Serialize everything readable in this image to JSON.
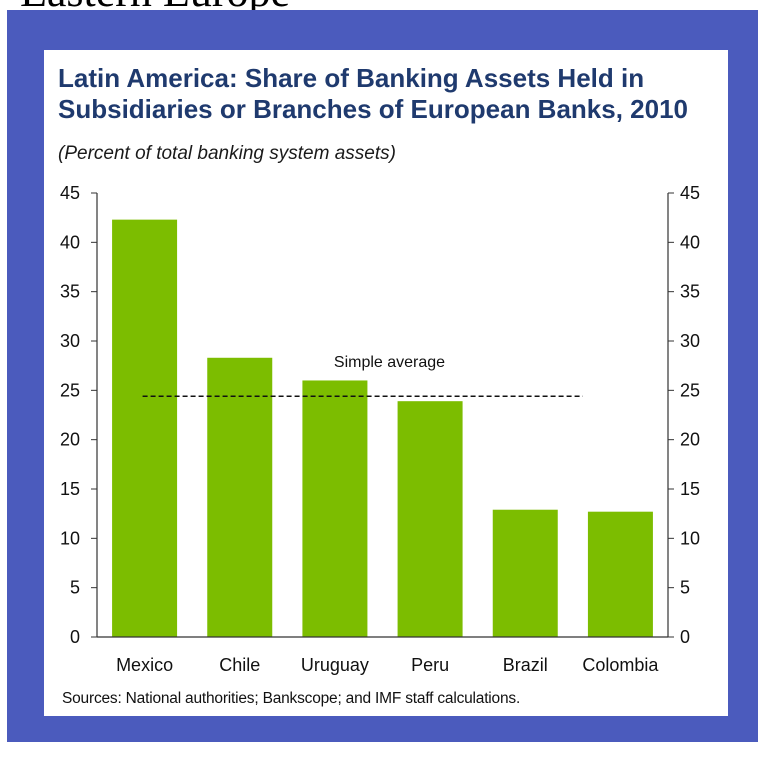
{
  "page": {
    "heading": "Eastern Europe"
  },
  "chart_data": {
    "type": "bar",
    "title": "Latin America: Share of Banking Assets Held in Subsidiaries or Branches of European Banks, 2010",
    "subtitle": "(Percent of total banking system assets)",
    "categories": [
      "Mexico",
      "Chile",
      "Uruguay",
      "Peru",
      "Brazil",
      "Colombia"
    ],
    "values": [
      42.3,
      28.3,
      26.0,
      23.9,
      12.9,
      12.7
    ],
    "ylim": [
      0,
      45
    ],
    "yticks": [
      0,
      5,
      10,
      15,
      20,
      25,
      30,
      35,
      40,
      45
    ],
    "secondary_y_axis": true,
    "bar_color": "#7cbd00",
    "reference_line": {
      "label": "Simple average",
      "value": 24.4,
      "style": "dashed"
    },
    "source": "Sources: National authorities; Bankscope; and IMF staff calculations."
  },
  "colors": {
    "frame": "#4b5bbd",
    "title": "#1f3a6e"
  }
}
